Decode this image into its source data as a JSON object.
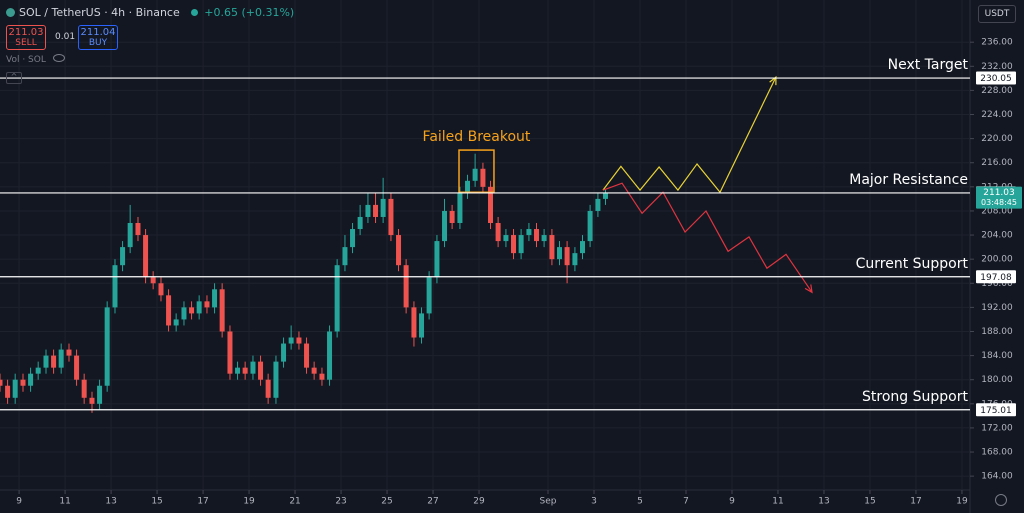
{
  "header": {
    "symbol": "SOL / TetherUS · 4h · Binance",
    "change": "+0.65 (+0.31%)",
    "sell_price": 211.03,
    "sell_label": "SELL",
    "spread": 0.01,
    "buy_price": 211.04,
    "buy_label": "BUY",
    "volume_label": "Vol · SOL",
    "currency": "USDT"
  },
  "chart_data": {
    "type": "candlestick",
    "up_color": "#26a69a",
    "down_color": "#ef5350",
    "grid": true,
    "xlim": [
      8.17,
      50.35
    ],
    "ylim": [
      161.7,
      243
    ],
    "xticks": [
      9,
      11,
      13,
      15,
      17,
      19,
      21,
      23,
      25,
      27,
      29,
      {
        "value": 32,
        "label": "Sep"
      },
      {
        "value": 34,
        "label": "3"
      },
      {
        "value": 36,
        "label": "5"
      },
      {
        "value": 38,
        "label": "7"
      },
      {
        "value": 40,
        "label": "9"
      },
      {
        "value": 42,
        "label": "11"
      },
      {
        "value": 44,
        "label": "13"
      },
      {
        "value": 46,
        "label": "15"
      },
      {
        "value": 48,
        "label": "17"
      },
      {
        "value": 50,
        "label": "19"
      }
    ],
    "yticks": [
      {
        "value": 164,
        "label": "164.00"
      },
      {
        "value": 168,
        "label": "168.00"
      },
      {
        "value": 172,
        "label": "172.00"
      },
      {
        "value": 176,
        "label": "176.00"
      },
      {
        "value": 180,
        "label": "180.00"
      },
      {
        "value": 184,
        "label": "184.00"
      },
      {
        "value": 188,
        "label": "188.00"
      },
      {
        "value": 192,
        "label": "192.00"
      },
      {
        "value": 196,
        "label": "196.00"
      },
      {
        "value": 200,
        "label": "200.00"
      },
      {
        "value": 204,
        "label": "204.00"
      },
      {
        "value": 208,
        "label": "208.00"
      },
      {
        "value": 212,
        "label": "212.00"
      },
      {
        "value": 216,
        "label": "216.00"
      },
      {
        "value": 220,
        "label": "220.00"
      },
      {
        "value": 224,
        "label": "224.00"
      },
      {
        "value": 228,
        "label": "228.00"
      },
      {
        "value": 232,
        "label": "232.00"
      },
      {
        "value": 236,
        "label": "236.00"
      }
    ],
    "candles": {
      "x": [
        8.17,
        8.5,
        8.83,
        9.17,
        9.5,
        9.83,
        10.17,
        10.5,
        10.83,
        11.17,
        11.5,
        11.83,
        12.17,
        12.5,
        12.83,
        13.17,
        13.5,
        13.83,
        14.17,
        14.5,
        14.83,
        15.17,
        15.5,
        15.83,
        16.17,
        16.5,
        16.83,
        17.17,
        17.5,
        17.83,
        18.17,
        18.5,
        18.83,
        19.17,
        19.5,
        19.83,
        20.17,
        20.5,
        20.83,
        21.17,
        21.5,
        21.83,
        22.17,
        22.5,
        22.83,
        23.17,
        23.5,
        23.83,
        24.17,
        24.5,
        24.83,
        25.17,
        25.5,
        25.83,
        26.17,
        26.5,
        26.83,
        27.17,
        27.5,
        27.83,
        28.17,
        28.5,
        28.83,
        29.17,
        29.5,
        29.83,
        30.17,
        30.5,
        30.83,
        31.17,
        31.5,
        31.83,
        32.17,
        32.5,
        32.83,
        33.17,
        33.5,
        33.83,
        34.17,
        34.5
      ],
      "open": [
        180,
        179,
        177,
        180,
        179,
        181,
        182,
        184,
        182,
        185,
        184,
        180,
        177,
        176,
        179,
        192,
        199,
        202,
        206,
        204,
        197,
        196,
        194,
        189,
        190,
        192,
        191,
        193,
        192,
        195,
        188,
        181,
        182,
        181,
        183,
        180,
        177,
        183,
        186,
        187,
        186,
        182,
        181,
        180,
        188,
        199,
        202,
        205,
        207,
        209,
        207,
        210,
        204,
        199,
        192,
        187,
        191,
        197,
        203,
        208,
        206,
        211,
        213,
        215,
        212,
        206,
        203,
        204,
        201,
        204,
        205,
        203,
        204,
        200,
        202,
        199,
        201,
        203,
        208,
        210
      ],
      "high": [
        181,
        180,
        181,
        181,
        182,
        183,
        185,
        185,
        186,
        186,
        185,
        181,
        178,
        180,
        193,
        200,
        203,
        209,
        207,
        205,
        198,
        197,
        195,
        191,
        193,
        193,
        194,
        194,
        196,
        196,
        189,
        183,
        183,
        184,
        184,
        181,
        184,
        187,
        189,
        188,
        187,
        183,
        182,
        189,
        200,
        204,
        206,
        209,
        211,
        211,
        213.5,
        211,
        205,
        200,
        193,
        192,
        198,
        204,
        210,
        209,
        212,
        214,
        217.5,
        216,
        213,
        207,
        205,
        205,
        205,
        206,
        206,
        205,
        205,
        203,
        203,
        202,
        204,
        209,
        211,
        211.5
      ],
      "low": [
        178,
        176,
        176,
        178,
        178,
        180,
        181,
        181,
        181,
        183,
        179,
        176,
        174.5,
        175,
        178,
        191,
        198,
        201,
        203,
        196,
        195,
        193,
        188,
        188,
        189,
        190,
        190,
        191,
        191,
        187,
        180,
        180,
        180,
        180,
        179,
        176,
        176,
        182,
        185,
        185,
        181,
        180,
        179,
        179,
        187,
        198,
        201,
        204,
        206,
        206,
        206,
        203,
        198,
        191,
        185.5,
        186,
        190,
        196,
        202,
        205,
        205,
        210,
        212,
        211,
        205,
        202,
        202,
        200,
        200,
        203,
        202,
        202,
        199,
        199,
        196,
        198,
        200,
        202,
        207,
        209
      ],
      "close": [
        179,
        177,
        180,
        179,
        181,
        182,
        184,
        182,
        185,
        184,
        180,
        177,
        176,
        179,
        192,
        199,
        202,
        206,
        204,
        197,
        196,
        194,
        189,
        190,
        192,
        191,
        193,
        192,
        195,
        188,
        181,
        182,
        181,
        183,
        180,
        177,
        183,
        186,
        187,
        186,
        182,
        181,
        180,
        188,
        199,
        202,
        205,
        207,
        209,
        207,
        210,
        204,
        199,
        192,
        187,
        191,
        197,
        203,
        208,
        206,
        211,
        213,
        215,
        212,
        206,
        203,
        204,
        201,
        204,
        205,
        203,
        204,
        200,
        202,
        199,
        201,
        203,
        208,
        210,
        211
      ]
    },
    "last_price": 211.03,
    "last_price_color": "#26a69a",
    "countdown": "03:48:45",
    "levels": [
      {
        "label": "Next Target",
        "value": 230.05
      },
      {
        "label": "Major Resistance",
        "value": 210.99
      },
      {
        "label": "Current Support",
        "value": 197.08
      },
      {
        "label": "Strong Support",
        "value": 175.01
      }
    ],
    "drawings": [
      {
        "color": "#e8d234",
        "x": [
          34.39,
          35.17,
          36.0,
          36.83,
          37.65,
          38.48,
          39.48,
          41.91
        ],
        "y": [
          211.45,
          215.4,
          211.45,
          215.3,
          211.45,
          215.8,
          211.1,
          230.2
        ]
      },
      {
        "color": "#e0343f",
        "x": [
          34.39,
          35.22,
          36.09,
          37.0,
          37.96,
          38.87,
          39.83,
          40.74,
          41.52,
          42.35,
          43.48
        ],
        "y": [
          211.45,
          212.6,
          207.6,
          211.1,
          204.5,
          208.0,
          201.3,
          203.7,
          198.5,
          200.8,
          194.5
        ]
      }
    ],
    "box": {
      "color": "#f7a21b",
      "x": [
        28.13,
        29.65
      ],
      "y": [
        218.1,
        211.1
      ],
      "label": "Failed Breakout"
    }
  }
}
